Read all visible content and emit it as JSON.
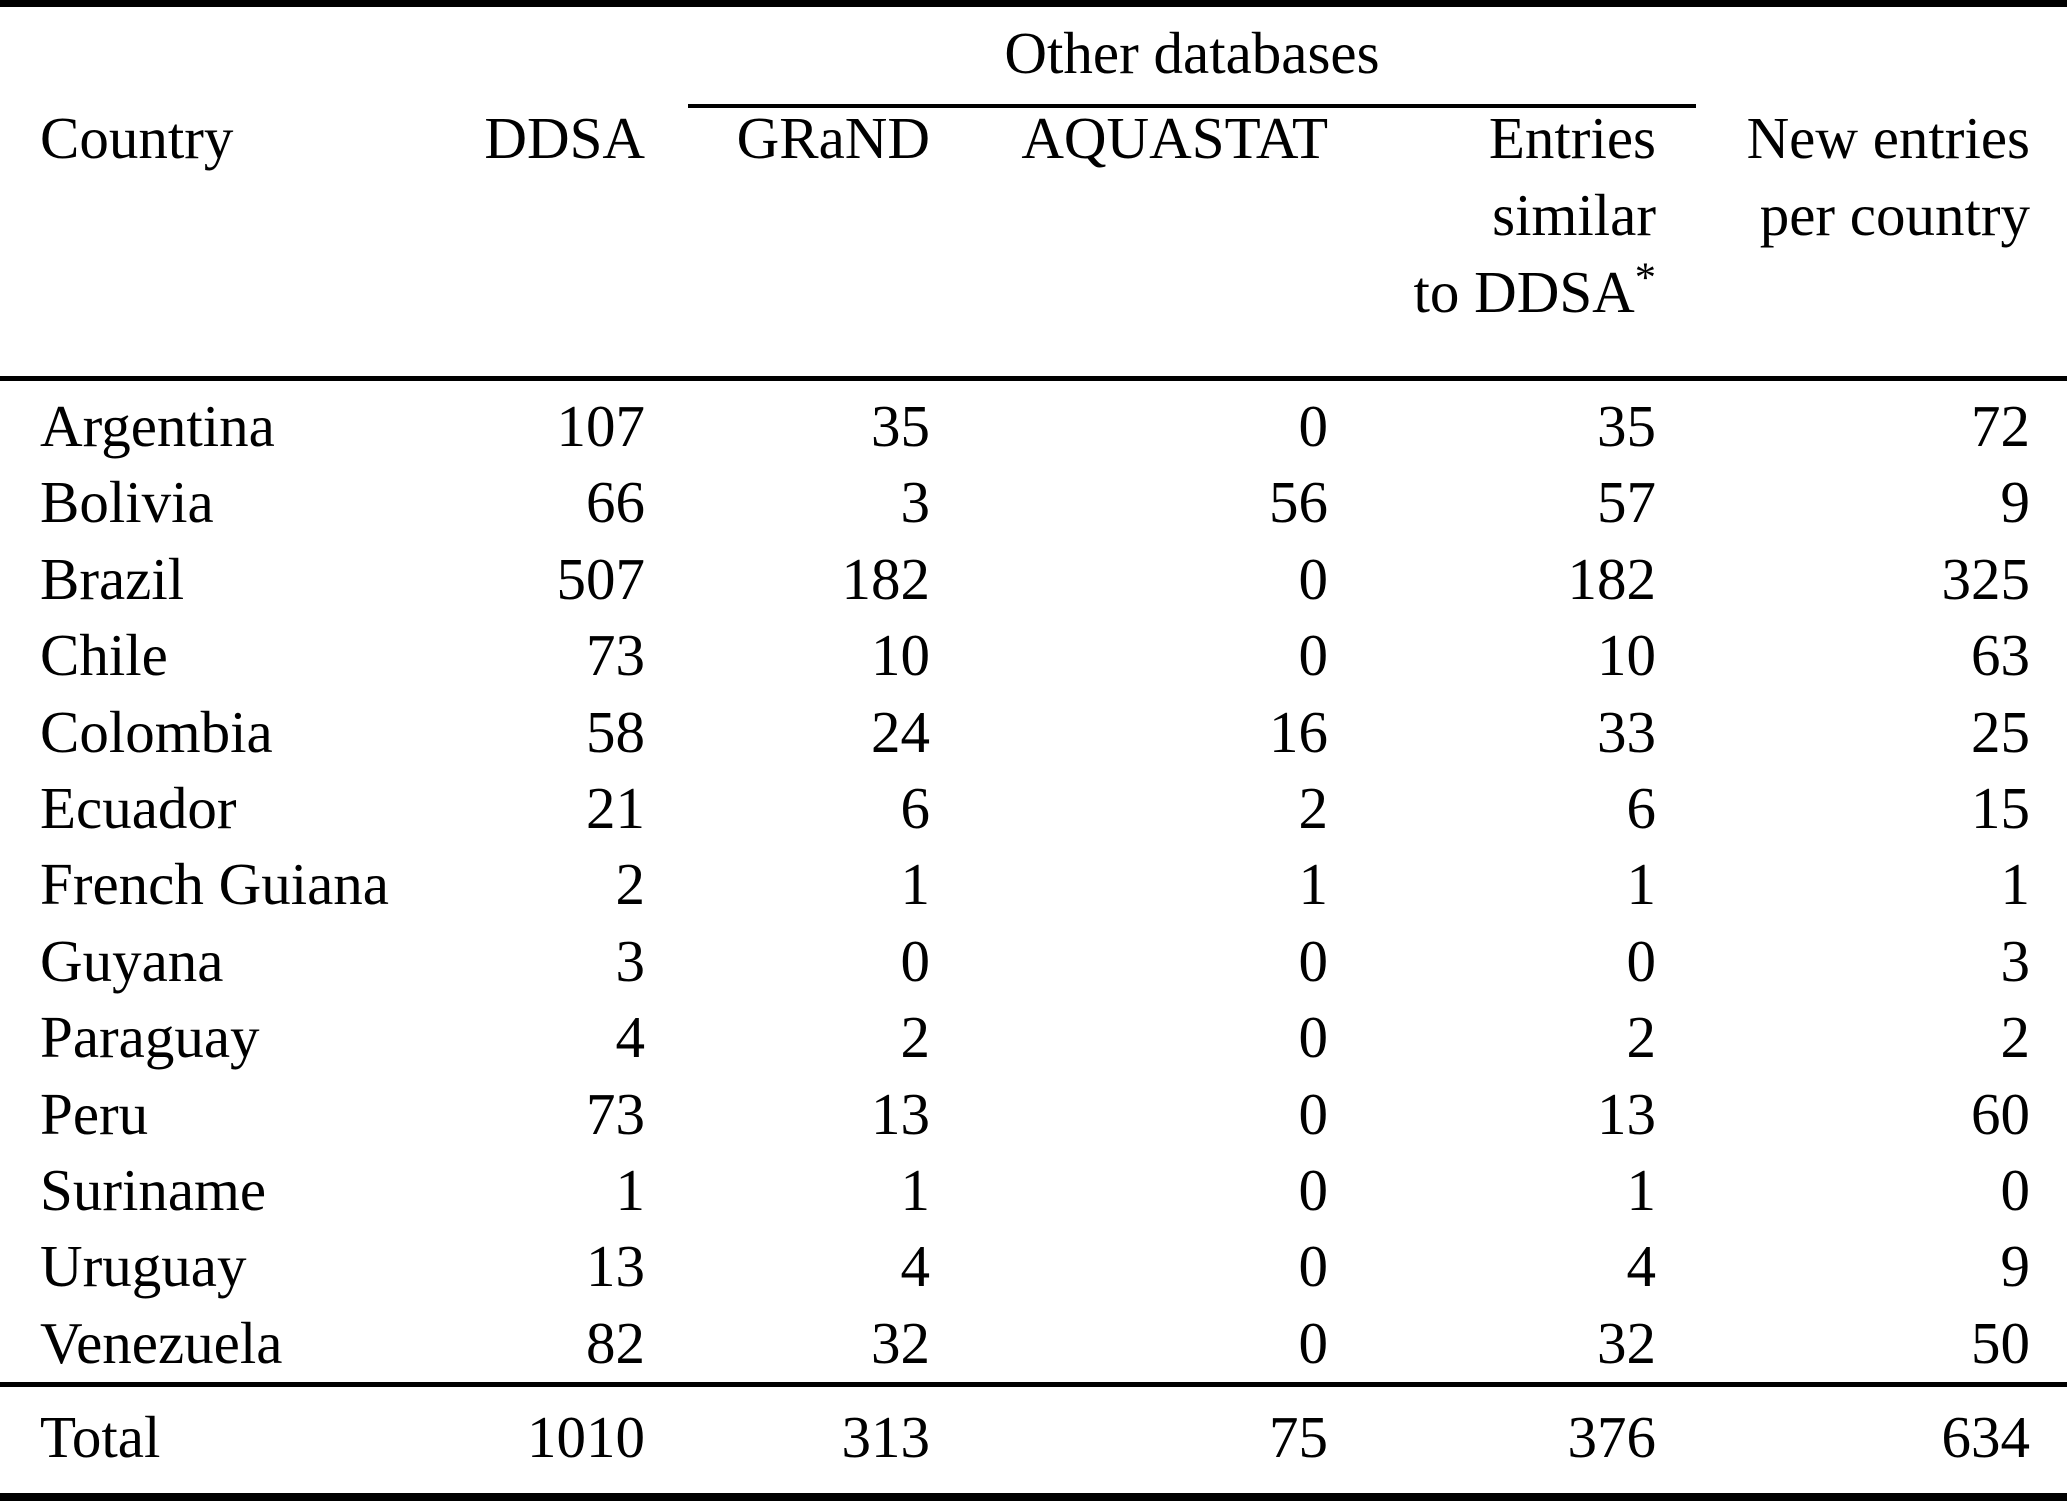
{
  "table": {
    "group_header": {
      "label": "Other databases"
    },
    "header": {
      "country": "Country",
      "ddsa": "DDSA",
      "grand": "GRaND",
      "aquastat": "AQUASTAT",
      "entries_line1": "Entries",
      "entries_line2": "similar",
      "entries_line3_text": "to DDSA",
      "entries_line3_sup": "*",
      "new_entries_line1": "New entries",
      "new_entries_line2": "per country"
    },
    "rows": [
      {
        "country": "Argentina",
        "ddsa": "107",
        "grand": "35",
        "aquastat": "0",
        "similar": "35",
        "new": "72"
      },
      {
        "country": "Bolivia",
        "ddsa": "66",
        "grand": "3",
        "aquastat": "56",
        "similar": "57",
        "new": "9"
      },
      {
        "country": "Brazil",
        "ddsa": "507",
        "grand": "182",
        "aquastat": "0",
        "similar": "182",
        "new": "325"
      },
      {
        "country": "Chile",
        "ddsa": "73",
        "grand": "10",
        "aquastat": "0",
        "similar": "10",
        "new": "63"
      },
      {
        "country": "Colombia",
        "ddsa": "58",
        "grand": "24",
        "aquastat": "16",
        "similar": "33",
        "new": "25"
      },
      {
        "country": "Ecuador",
        "ddsa": "21",
        "grand": "6",
        "aquastat": "2",
        "similar": "6",
        "new": "15"
      },
      {
        "country": "French Guiana",
        "ddsa": "2",
        "grand": "1",
        "aquastat": "1",
        "similar": "1",
        "new": "1"
      },
      {
        "country": "Guyana",
        "ddsa": "3",
        "grand": "0",
        "aquastat": "0",
        "similar": "0",
        "new": "3"
      },
      {
        "country": "Paraguay",
        "ddsa": "4",
        "grand": "2",
        "aquastat": "0",
        "similar": "2",
        "new": "2"
      },
      {
        "country": "Peru",
        "ddsa": "73",
        "grand": "13",
        "aquastat": "0",
        "similar": "13",
        "new": "60"
      },
      {
        "country": "Suriname",
        "ddsa": "1",
        "grand": "1",
        "aquastat": "0",
        "similar": "1",
        "new": "0"
      },
      {
        "country": "Uruguay",
        "ddsa": "13",
        "grand": "4",
        "aquastat": "0",
        "similar": "4",
        "new": "9"
      },
      {
        "country": "Venezuela",
        "ddsa": "82",
        "grand": "32",
        "aquastat": "0",
        "similar": "32",
        "new": "50"
      }
    ],
    "total": {
      "label": "Total",
      "ddsa": "1010",
      "grand": "313",
      "aquastat": "75",
      "similar": "376",
      "new": "634"
    }
  }
}
